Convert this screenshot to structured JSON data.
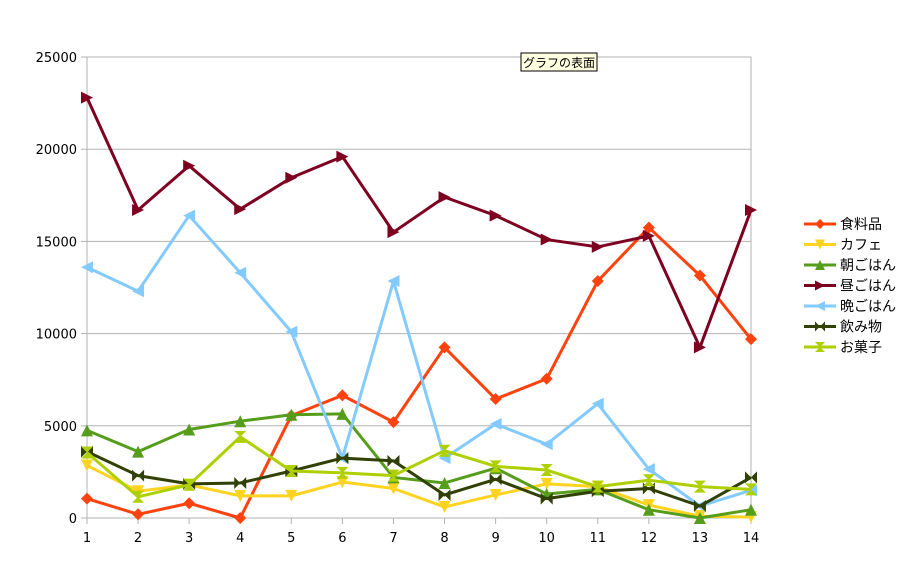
{
  "tooltip": "グラフの表面",
  "chart_data": {
    "type": "line",
    "title": "",
    "xlabel": "",
    "ylabel": "",
    "x": [
      1,
      2,
      3,
      4,
      5,
      6,
      7,
      8,
      9,
      10,
      11,
      12,
      13,
      14
    ],
    "ylim": [
      0,
      25000
    ],
    "yticks": [
      0,
      5000,
      10000,
      15000,
      20000,
      25000
    ],
    "grid": "horizontal",
    "legend_position": "right",
    "series": [
      {
        "name": "食料品",
        "color": "#ff420e",
        "marker": "diamond",
        "values": [
          1050,
          200,
          800,
          0,
          5550,
          6650,
          5200,
          9250,
          6450,
          7550,
          12850,
          15750,
          13150,
          9700
        ]
      },
      {
        "name": "カフェ",
        "color": "#ffd320",
        "marker": "triangle-down",
        "values": [
          2850,
          1450,
          1800,
          1200,
          1200,
          1950,
          1600,
          600,
          1250,
          1850,
          1700,
          700,
          100,
          50
        ]
      },
      {
        "name": "朝ごはん",
        "color": "#579d1c",
        "marker": "triangle-up",
        "values": [
          4750,
          3600,
          4800,
          5250,
          5600,
          5650,
          2200,
          1900,
          2700,
          1300,
          1550,
          450,
          0,
          450
        ]
      },
      {
        "name": "昼ごはん",
        "color": "#7e0021",
        "marker": "triangle-right",
        "values": [
          22800,
          16700,
          19100,
          16750,
          18450,
          19600,
          15500,
          17400,
          16400,
          15100,
          14700,
          15300,
          9250,
          16700
        ]
      },
      {
        "name": "晩ごはん",
        "color": "#83caff",
        "marker": "triangle-left",
        "values": [
          13600,
          12300,
          16400,
          13300,
          10100,
          3250,
          12850,
          3250,
          5100,
          4000,
          6200,
          2650,
          650,
          1500
        ]
      },
      {
        "name": "飲み物",
        "color": "#314004",
        "marker": "bowtie",
        "values": [
          3600,
          2300,
          1850,
          1900,
          2550,
          3250,
          3100,
          1250,
          2100,
          1050,
          1450,
          1600,
          650,
          2200
        ]
      },
      {
        "name": "お菓子",
        "color": "#aecf00",
        "marker": "hourglass",
        "values": [
          3550,
          1150,
          1800,
          4400,
          2550,
          2450,
          2300,
          3650,
          2800,
          2600,
          1700,
          2050,
          1700,
          1550
        ]
      }
    ]
  }
}
